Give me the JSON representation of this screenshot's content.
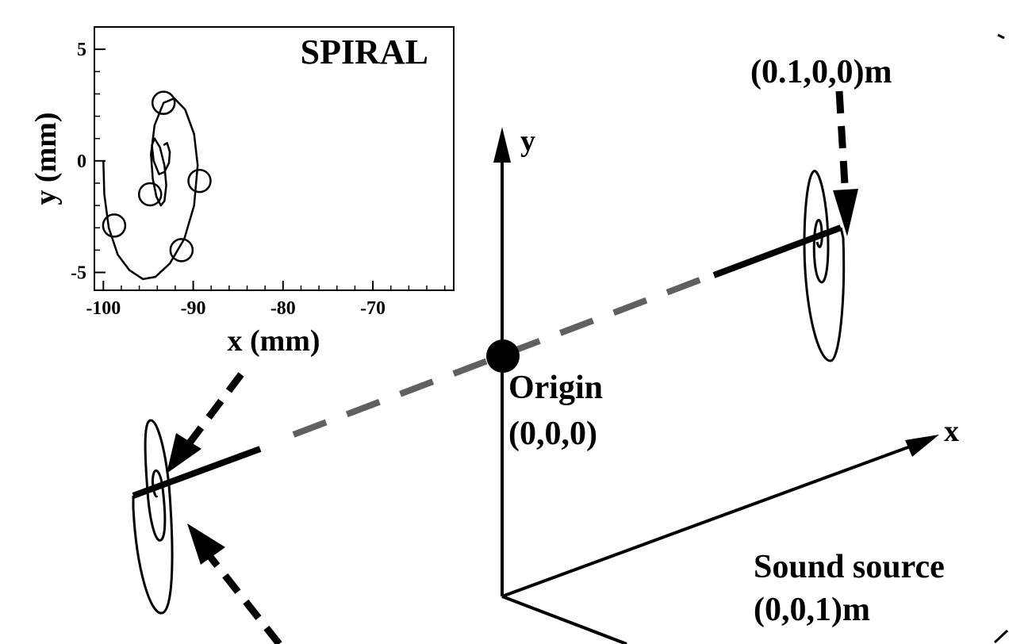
{
  "diagram": {
    "axes": {
      "x_label": "x",
      "y_label": "y"
    },
    "origin": {
      "label": "Origin",
      "coords": "(0,0,0)"
    },
    "source_label": "Sound source",
    "source_coords": "(0,0,1)m",
    "right_spiral_label": "(0.1,0,0)m",
    "colors": {
      "dashed_axis": "#606060",
      "ink": "#000000"
    }
  },
  "chart_data": {
    "type": "line",
    "title": "SPIRAL",
    "xlabel": "x (mm)",
    "ylabel": "y (mm)",
    "xlim": [
      -101,
      -61
    ],
    "ylim": [
      -5.8,
      6
    ],
    "x_ticks": [
      -100,
      -90,
      -80,
      -70
    ],
    "y_ticks": [
      5,
      0,
      -5
    ],
    "x_tick_labels": [
      "-100",
      "-90",
      "-80",
      "-70"
    ],
    "y_tick_labels": [
      "5",
      "0",
      "-5"
    ],
    "series": [
      {
        "x": [
          -100.0,
          -99.9,
          -99.4,
          -98.4,
          -97.1,
          -95.6,
          -94.2,
          -92.6,
          -91.0,
          -89.9,
          -89.5,
          -89.9,
          -90.9,
          -92.1,
          -93.3,
          -94.3,
          -94.7,
          -94.5,
          -94.1,
          -93.6,
          -93.2,
          -93.0,
          -93.2,
          -93.7,
          -94.3,
          -94.6,
          -94.4,
          -93.8,
          -93.2,
          -92.7,
          -92.6,
          -92.9,
          -93.3
        ],
        "y": [
          0.0,
          -1.5,
          -3.0,
          -4.2,
          -4.9,
          -5.3,
          -5.2,
          -4.6,
          -3.5,
          -2.0,
          -0.2,
          1.2,
          2.3,
          2.8,
          2.6,
          1.6,
          0.3,
          -0.8,
          -1.6,
          -2.0,
          -1.8,
          -1.1,
          -0.2,
          0.6,
          1.0,
          0.7,
          0.0,
          -0.6,
          -0.5,
          -0.1,
          0.4,
          0.8,
          0.7
        ]
      },
      {
        "name": "",
        "x": [
          -98.8,
          -94.8,
          -91.3,
          -89.3,
          -93.3
        ],
        "y": [
          -2.9,
          -1.5,
          -4.0,
          -0.9,
          2.6
        ]
      }
    ],
    "grid": false,
    "legend": "none"
  }
}
